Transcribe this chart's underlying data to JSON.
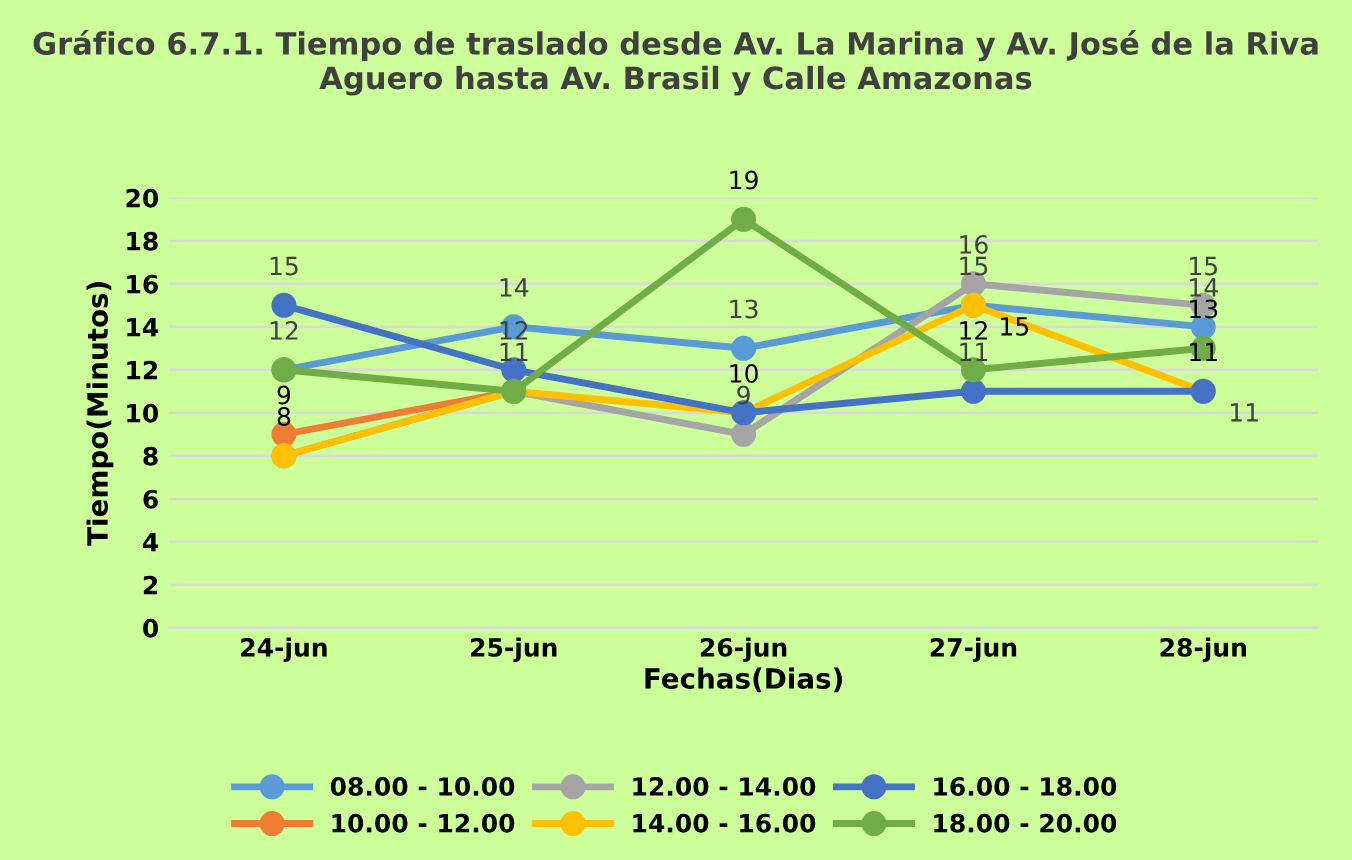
{
  "chart_data": {
    "type": "line",
    "title": "Gráfico 6.7.1. Tiempo de traslado desde Av. La Marina y Av. José de la Riva Aguero hasta Av. Brasil y Calle Amazonas",
    "xlabel": "Fechas(Dias)",
    "ylabel": "Tiempo(Minutos)",
    "categories": [
      "24-jun",
      "25-jun",
      "26-jun",
      "27-jun",
      "28-jun"
    ],
    "series": [
      {
        "name": "08.00 - 10.00",
        "color": "#5b9bd5",
        "values": [
          12,
          14,
          13,
          15,
          14
        ],
        "value_labels": [
          "12",
          "14",
          "13",
          "15",
          "14"
        ]
      },
      {
        "name": "10.00 - 12.00",
        "color": "#ed7d31",
        "values": [
          9,
          11,
          null,
          null,
          null
        ],
        "value_labels": [
          "9",
          null,
          null,
          null,
          null
        ]
      },
      {
        "name": "12.00 - 14.00",
        "color": "#a5a5a5",
        "values": [
          8,
          11,
          9,
          16,
          15
        ],
        "value_labels": [
          null,
          "11",
          "9",
          "16",
          "15"
        ]
      },
      {
        "name": "14.00 - 16.00",
        "color": "#ffc000",
        "values": [
          8,
          11,
          10,
          15,
          11
        ],
        "value_labels": [
          "8",
          null,
          "10",
          "15",
          "11"
        ]
      },
      {
        "name": "16.00 - 18.00",
        "color": "#4472c4",
        "values": [
          15,
          12,
          10,
          11,
          11
        ],
        "value_labels": [
          "15",
          "12",
          null,
          "11",
          "11"
        ]
      },
      {
        "name": "18.00 - 20.00",
        "color": "#70ad47",
        "values": [
          12,
          11,
          19,
          12,
          13
        ],
        "value_labels": [
          null,
          null,
          "19",
          "12",
          "13"
        ]
      }
    ],
    "ylim": [
      0,
      20
    ],
    "yticks": [
      0,
      2,
      4,
      6,
      8,
      10,
      12,
      14,
      16,
      18,
      20
    ],
    "grid": "y",
    "legend": "bottom",
    "marker": "circle",
    "line_style": "solid"
  }
}
